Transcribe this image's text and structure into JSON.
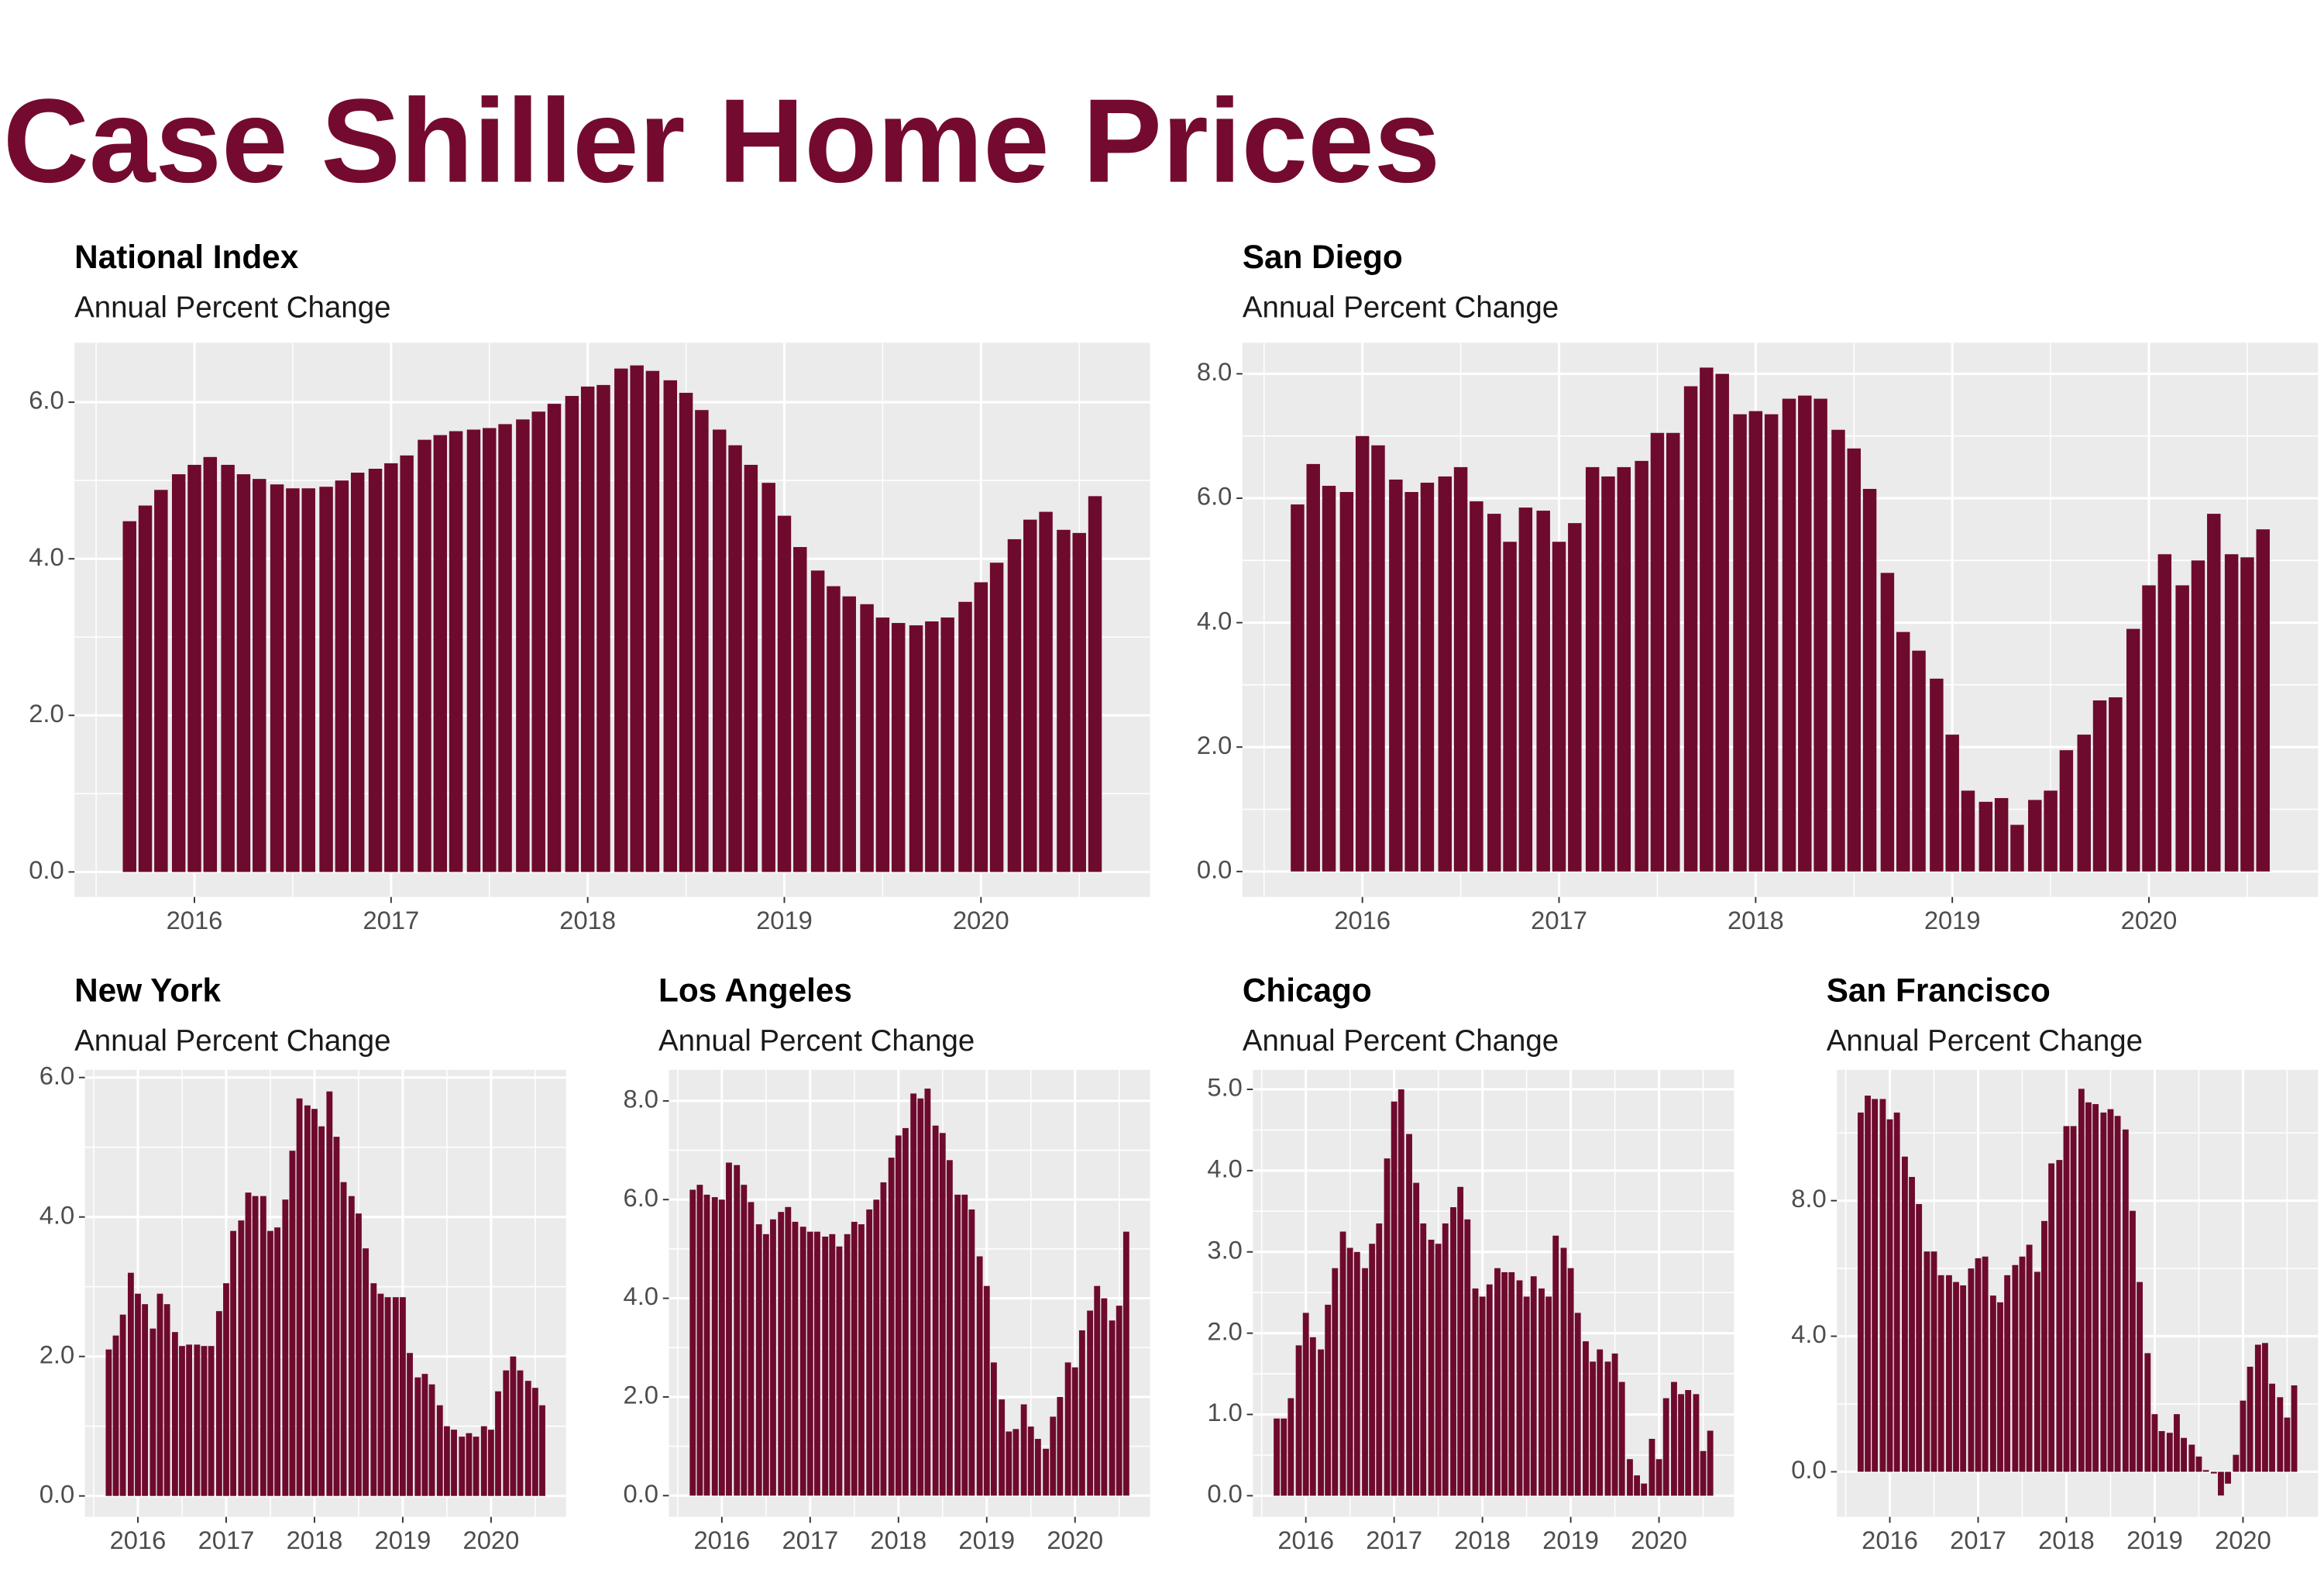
{
  "title": "Case Shiller Home Prices",
  "chart_data": [
    {
      "type": "bar",
      "title": "National Index",
      "subtitle": "Annual Percent Change",
      "color": "#6e0a2d",
      "grid": true,
      "x": [
        2015.67,
        2015.75,
        2015.83,
        2015.92,
        2016,
        2016.08,
        2016.17,
        2016.25,
        2016.33,
        2016.42,
        2016.5,
        2016.58,
        2016.67,
        2016.75,
        2016.83,
        2016.92,
        2017,
        2017.08,
        2017.17,
        2017.25,
        2017.33,
        2017.42,
        2017.5,
        2017.58,
        2017.67,
        2017.75,
        2017.83,
        2017.92,
        2018,
        2018.08,
        2018.17,
        2018.25,
        2018.33,
        2018.42,
        2018.5,
        2018.58,
        2018.67,
        2018.75,
        2018.83,
        2018.92,
        2019,
        2019.08,
        2019.17,
        2019.25,
        2019.33,
        2019.42,
        2019.5,
        2019.58,
        2019.67,
        2019.75,
        2019.83,
        2019.92,
        2020,
        2020.08,
        2020.17,
        2020.25,
        2020.33,
        2020.42,
        2020.5,
        2020.58
      ],
      "values": [
        4.48,
        4.68,
        4.88,
        5.08,
        5.2,
        5.3,
        5.2,
        5.08,
        5.02,
        4.95,
        4.9,
        4.9,
        4.92,
        5.0,
        5.1,
        5.15,
        5.22,
        5.32,
        5.52,
        5.58,
        5.63,
        5.65,
        5.67,
        5.72,
        5.78,
        5.88,
        5.98,
        6.08,
        6.2,
        6.22,
        6.43,
        6.47,
        6.4,
        6.28,
        6.12,
        5.9,
        5.65,
        5.45,
        5.2,
        4.97,
        4.55,
        4.15,
        3.85,
        3.65,
        3.52,
        3.42,
        3.25,
        3.18,
        3.15,
        3.2,
        3.25,
        3.45,
        3.7,
        3.95,
        4.25,
        4.5,
        4.6,
        4.37,
        4.33,
        4.8
      ],
      "xlim": [
        2015.39,
        2020.86
      ],
      "xticks": [
        2016,
        2017,
        2018,
        2019,
        2020
      ],
      "ylim": [
        -0.32,
        6.76
      ],
      "yticks": [
        {
          "value": 0,
          "label": "0.0"
        },
        {
          "value": 2,
          "label": "2.0"
        },
        {
          "value": 4,
          "label": "4.0"
        },
        {
          "value": 6,
          "label": "6.0"
        }
      ]
    },
    {
      "type": "bar",
      "title": "San Diego",
      "subtitle": "Annual Percent Change",
      "color": "#6e0a2d",
      "grid": true,
      "x": [
        2015.67,
        2015.75,
        2015.83,
        2015.92,
        2016,
        2016.08,
        2016.17,
        2016.25,
        2016.33,
        2016.42,
        2016.5,
        2016.58,
        2016.67,
        2016.75,
        2016.83,
        2016.92,
        2017,
        2017.08,
        2017.17,
        2017.25,
        2017.33,
        2017.42,
        2017.5,
        2017.58,
        2017.67,
        2017.75,
        2017.83,
        2017.92,
        2018,
        2018.08,
        2018.17,
        2018.25,
        2018.33,
        2018.42,
        2018.5,
        2018.58,
        2018.67,
        2018.75,
        2018.83,
        2018.92,
        2019,
        2019.08,
        2019.17,
        2019.25,
        2019.33,
        2019.42,
        2019.5,
        2019.58,
        2019.67,
        2019.75,
        2019.83,
        2019.92,
        2020,
        2020.08,
        2020.17,
        2020.25,
        2020.33,
        2020.42,
        2020.5,
        2020.58
      ],
      "values": [
        5.9,
        6.55,
        6.2,
        6.1,
        7.0,
        6.85,
        6.3,
        6.1,
        6.25,
        6.35,
        6.5,
        5.95,
        5.75,
        5.3,
        5.85,
        5.8,
        5.3,
        5.6,
        6.5,
        6.35,
        6.5,
        6.6,
        7.05,
        7.05,
        7.8,
        8.1,
        8.0,
        7.35,
        7.4,
        7.35,
        7.6,
        7.65,
        7.6,
        7.1,
        6.8,
        6.15,
        4.8,
        3.85,
        3.55,
        3.1,
        2.2,
        1.3,
        1.12,
        1.18,
        0.75,
        1.15,
        1.3,
        1.95,
        2.2,
        2.75,
        2.8,
        3.9,
        4.6,
        5.1,
        4.6,
        5.0,
        5.75,
        5.1,
        5.05,
        5.5
      ],
      "xlim": [
        2015.39,
        2020.86
      ],
      "xticks": [
        2016,
        2017,
        2018,
        2019,
        2020
      ],
      "ylim": [
        -0.41,
        8.5
      ],
      "yticks": [
        {
          "value": 0,
          "label": "0.0"
        },
        {
          "value": 2,
          "label": "2.0"
        },
        {
          "value": 4,
          "label": "4.0"
        },
        {
          "value": 6,
          "label": "6.0"
        },
        {
          "value": 8,
          "label": "8.0"
        }
      ]
    },
    {
      "type": "bar",
      "title": "New York",
      "subtitle": "Annual Percent Change",
      "color": "#6e0a2d",
      "grid": true,
      "x": [
        2015.67,
        2015.75,
        2015.83,
        2015.92,
        2016,
        2016.08,
        2016.17,
        2016.25,
        2016.33,
        2016.42,
        2016.5,
        2016.58,
        2016.67,
        2016.75,
        2016.83,
        2016.92,
        2017,
        2017.08,
        2017.17,
        2017.25,
        2017.33,
        2017.42,
        2017.5,
        2017.58,
        2017.67,
        2017.75,
        2017.83,
        2017.92,
        2018,
        2018.08,
        2018.17,
        2018.25,
        2018.33,
        2018.42,
        2018.5,
        2018.58,
        2018.67,
        2018.75,
        2018.83,
        2018.92,
        2019,
        2019.08,
        2019.17,
        2019.25,
        2019.33,
        2019.42,
        2019.5,
        2019.58,
        2019.67,
        2019.75,
        2019.83,
        2019.92,
        2020,
        2020.08,
        2020.17,
        2020.25,
        2020.33,
        2020.42,
        2020.5,
        2020.58
      ],
      "values": [
        2.1,
        2.3,
        2.6,
        3.2,
        2.9,
        2.75,
        2.4,
        2.9,
        2.75,
        2.35,
        2.15,
        2.17,
        2.17,
        2.15,
        2.15,
        2.65,
        3.05,
        3.8,
        3.95,
        4.35,
        4.3,
        4.3,
        3.8,
        3.85,
        4.25,
        4.95,
        5.7,
        5.6,
        5.55,
        5.3,
        5.8,
        5.15,
        4.5,
        4.3,
        4.05,
        3.55,
        3.05,
        2.9,
        2.85,
        2.85,
        2.85,
        2.05,
        1.7,
        1.75,
        1.6,
        1.3,
        1.0,
        0.95,
        0.85,
        0.9,
        0.85,
        1.0,
        0.95,
        1.5,
        1.8,
        2.0,
        1.8,
        1.65,
        1.55,
        1.3
      ],
      "xlim": [
        2015.4,
        2020.85
      ],
      "xticks": [
        2016,
        2017,
        2018,
        2019,
        2020
      ],
      "ylim": [
        -0.3,
        6.11
      ],
      "yticks": [
        {
          "value": 0,
          "label": "0.0"
        },
        {
          "value": 2,
          "label": "2.0"
        },
        {
          "value": 4,
          "label": "4.0"
        },
        {
          "value": 6,
          "label": "6.0"
        }
      ]
    },
    {
      "type": "bar",
      "title": "Los Angeles",
      "subtitle": "Annual Percent Change",
      "color": "#6e0a2d",
      "grid": true,
      "x": [
        2015.67,
        2015.75,
        2015.83,
        2015.92,
        2016,
        2016.08,
        2016.17,
        2016.25,
        2016.33,
        2016.42,
        2016.5,
        2016.58,
        2016.67,
        2016.75,
        2016.83,
        2016.92,
        2017,
        2017.08,
        2017.17,
        2017.25,
        2017.33,
        2017.42,
        2017.5,
        2017.58,
        2017.67,
        2017.75,
        2017.83,
        2017.92,
        2018,
        2018.08,
        2018.17,
        2018.25,
        2018.33,
        2018.42,
        2018.5,
        2018.58,
        2018.67,
        2018.75,
        2018.83,
        2018.92,
        2019,
        2019.08,
        2019.17,
        2019.25,
        2019.33,
        2019.42,
        2019.5,
        2019.58,
        2019.67,
        2019.75,
        2019.83,
        2019.92,
        2020,
        2020.08,
        2020.17,
        2020.25,
        2020.33,
        2020.42,
        2020.5,
        2020.58
      ],
      "values": [
        6.2,
        6.3,
        6.1,
        6.05,
        6.0,
        6.75,
        6.7,
        6.3,
        5.95,
        5.5,
        5.3,
        5.6,
        5.75,
        5.85,
        5.55,
        5.45,
        5.35,
        5.35,
        5.25,
        5.3,
        5.05,
        5.3,
        5.55,
        5.5,
        5.8,
        6.0,
        6.35,
        6.85,
        7.3,
        7.45,
        8.15,
        8.05,
        8.25,
        7.5,
        7.35,
        6.8,
        6.1,
        6.1,
        5.8,
        4.85,
        4.25,
        2.7,
        1.95,
        1.3,
        1.35,
        1.85,
        1.4,
        1.15,
        0.95,
        1.6,
        2.0,
        2.7,
        2.6,
        3.35,
        3.75,
        4.25,
        4.0,
        3.55,
        3.85,
        5.35
      ],
      "xlim": [
        2015.4,
        2020.85
      ],
      "xticks": [
        2016,
        2017,
        2018,
        2019,
        2020
      ],
      "ylim": [
        -0.43,
        8.63
      ],
      "yticks": [
        {
          "value": 0,
          "label": "0.0"
        },
        {
          "value": 2,
          "label": "2.0"
        },
        {
          "value": 4,
          "label": "4.0"
        },
        {
          "value": 6,
          "label": "6.0"
        },
        {
          "value": 8,
          "label": "8.0"
        }
      ]
    },
    {
      "type": "bar",
      "title": "Chicago",
      "subtitle": "Annual Percent Change",
      "color": "#6e0a2d",
      "grid": true,
      "x": [
        2015.67,
        2015.75,
        2015.83,
        2015.92,
        2016,
        2016.08,
        2016.17,
        2016.25,
        2016.33,
        2016.42,
        2016.5,
        2016.58,
        2016.67,
        2016.75,
        2016.83,
        2016.92,
        2017,
        2017.08,
        2017.17,
        2017.25,
        2017.33,
        2017.42,
        2017.5,
        2017.58,
        2017.67,
        2017.75,
        2017.83,
        2017.92,
        2018,
        2018.08,
        2018.17,
        2018.25,
        2018.33,
        2018.42,
        2018.5,
        2018.58,
        2018.67,
        2018.75,
        2018.83,
        2018.92,
        2019,
        2019.08,
        2019.17,
        2019.25,
        2019.33,
        2019.42,
        2019.5,
        2019.58,
        2019.67,
        2019.75,
        2019.83,
        2019.92,
        2020,
        2020.08,
        2020.17,
        2020.25,
        2020.33,
        2020.42,
        2020.5,
        2020.58
      ],
      "values": [
        0.95,
        0.95,
        1.2,
        1.85,
        2.25,
        1.95,
        1.8,
        2.35,
        2.8,
        3.25,
        3.05,
        3.0,
        2.8,
        3.1,
        3.35,
        4.15,
        4.85,
        5.0,
        4.45,
        3.85,
        3.35,
        3.15,
        3.1,
        3.35,
        3.55,
        3.8,
        3.4,
        2.55,
        2.45,
        2.6,
        2.8,
        2.75,
        2.75,
        2.65,
        2.45,
        2.7,
        2.55,
        2.45,
        3.2,
        3.05,
        2.8,
        2.25,
        1.9,
        1.65,
        1.8,
        1.65,
        1.75,
        1.4,
        0.45,
        0.25,
        0.15,
        0.7,
        0.45,
        1.2,
        1.4,
        1.25,
        1.3,
        1.25,
        0.55,
        0.8
      ],
      "xlim": [
        2015.4,
        2020.85
      ],
      "xticks": [
        2016,
        2017,
        2018,
        2019,
        2020
      ],
      "ylim": [
        -0.26,
        5.24
      ],
      "yticks": [
        {
          "value": 0,
          "label": "0.0"
        },
        {
          "value": 1,
          "label": "1.0"
        },
        {
          "value": 2,
          "label": "2.0"
        },
        {
          "value": 3,
          "label": "3.0"
        },
        {
          "value": 4,
          "label": "4.0"
        },
        {
          "value": 5,
          "label": "5.0"
        }
      ]
    },
    {
      "type": "bar",
      "title": "San Francisco",
      "subtitle": "Annual Percent Change",
      "color": "#6e0a2d",
      "grid": true,
      "x": [
        2015.67,
        2015.75,
        2015.83,
        2015.92,
        2016,
        2016.08,
        2016.17,
        2016.25,
        2016.33,
        2016.42,
        2016.5,
        2016.58,
        2016.67,
        2016.75,
        2016.83,
        2016.92,
        2017,
        2017.08,
        2017.17,
        2017.25,
        2017.33,
        2017.42,
        2017.5,
        2017.58,
        2017.67,
        2017.75,
        2017.83,
        2017.92,
        2018,
        2018.08,
        2018.17,
        2018.25,
        2018.33,
        2018.42,
        2018.5,
        2018.58,
        2018.67,
        2018.75,
        2018.83,
        2018.92,
        2019,
        2019.08,
        2019.17,
        2019.25,
        2019.33,
        2019.42,
        2019.5,
        2019.58,
        2019.67,
        2019.75,
        2019.83,
        2019.92,
        2020,
        2020.08,
        2020.17,
        2020.25,
        2020.33,
        2020.42,
        2020.5,
        2020.58
      ],
      "values": [
        10.6,
        11.1,
        11.0,
        11.0,
        10.4,
        10.6,
        9.3,
        8.7,
        7.9,
        6.5,
        6.5,
        5.8,
        5.8,
        5.6,
        5.5,
        6.0,
        6.3,
        6.35,
        5.2,
        5.0,
        5.8,
        6.1,
        6.35,
        6.7,
        5.9,
        7.4,
        9.1,
        9.2,
        10.2,
        10.2,
        11.3,
        10.9,
        10.85,
        10.6,
        10.7,
        10.5,
        10.1,
        7.7,
        5.6,
        3.5,
        1.7,
        1.2,
        1.15,
        1.7,
        1.0,
        0.8,
        0.45,
        0.05,
        -0.05,
        -0.7,
        -0.35,
        0.5,
        2.1,
        3.1,
        3.75,
        3.8,
        2.6,
        2.2,
        1.6,
        2.55
      ],
      "xlim": [
        2015.4,
        2020.85
      ],
      "xticks": [
        2016,
        2017,
        2018,
        2019,
        2020
      ],
      "ylim": [
        -1.33,
        11.86
      ],
      "yticks": [
        {
          "value": 0,
          "label": "0.0"
        },
        {
          "value": 4,
          "label": "4.0"
        },
        {
          "value": 8,
          "label": "8.0"
        }
      ]
    }
  ]
}
